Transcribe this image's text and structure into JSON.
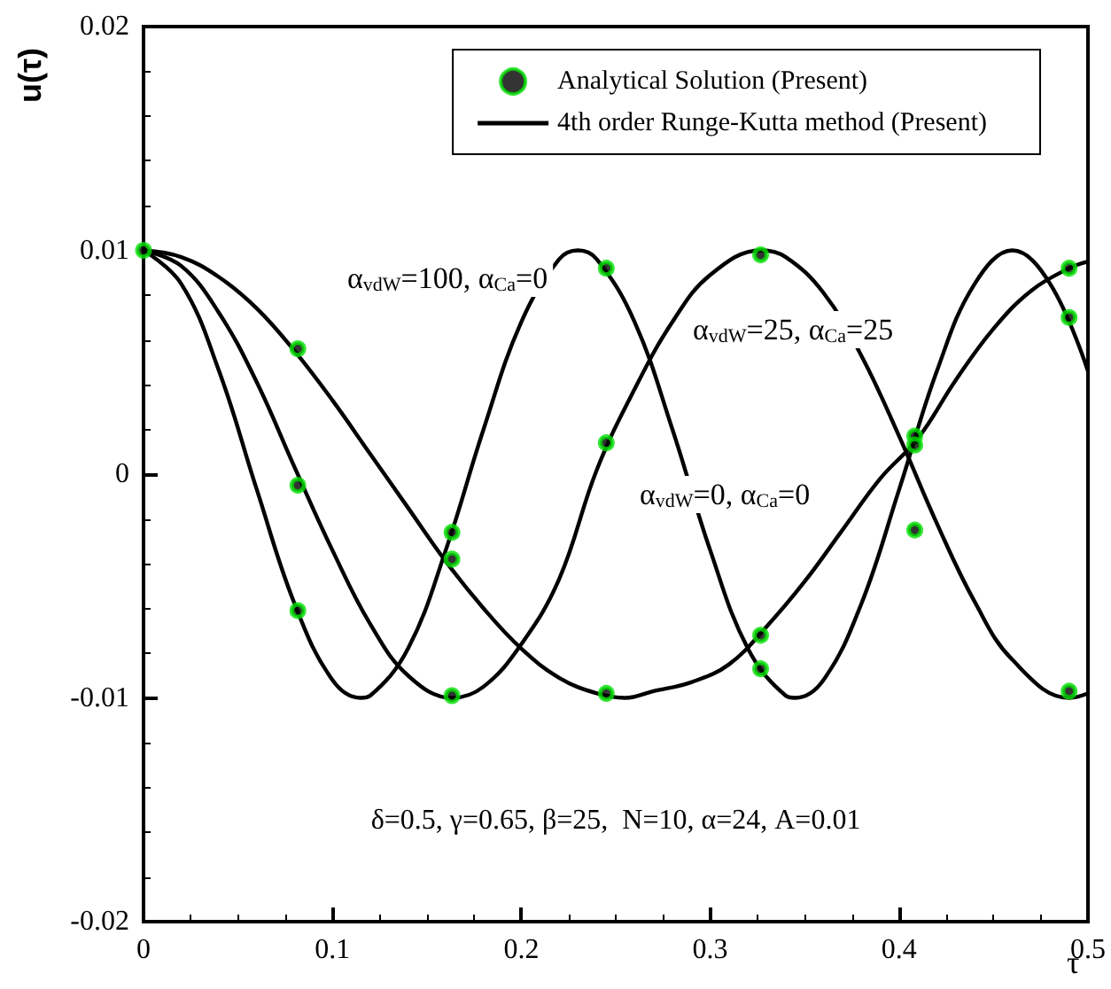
{
  "chart_data": {
    "type": "line",
    "xlabel": "τ",
    "ylabel": "u(τ)",
    "xlim": [
      0,
      0.5
    ],
    "xticks": [
      0,
      0.1,
      0.2,
      0.3,
      0.4,
      0.5
    ],
    "ylim": [
      -0.02,
      0.02
    ],
    "yticks": [
      -0.02,
      -0.01,
      0,
      0.01,
      0.02
    ],
    "grid": false,
    "legend": "top right",
    "annotations": [
      "α$_{vdW}$=100, α$_{Ca}$=0",
      "α$_{vdW}$=25, α$_{Ca}$=25",
      "α$_{vdW}$=0, α$_{Ca}$=0",
      "δ=0.5, γ=0.65, β=25,  N=10, α=24, A=0.01"
    ],
    "series": [
      {
        "name": "Analytical Solution (Present)",
        "type": "scatter",
        "color": "#00e000",
        "marker": "circle",
        "x": [
          0,
          0.0817,
          0.0817,
          0.0817,
          0.1633,
          0.1633,
          0.1633,
          0.245,
          0.245,
          0.245,
          0.3267,
          0.3267,
          0.3267,
          0.4083,
          0.4083,
          0.4083,
          0.49,
          0.49,
          0.49
        ],
        "values": [
          0.01,
          0.0056,
          -0.0005,
          -0.0061,
          -0.0026,
          -0.0038,
          -0.0099,
          0.0092,
          0.0014,
          -0.0098,
          0.0098,
          -0.0072,
          -0.0087,
          0.0017,
          0.0013,
          -0.0025,
          0.0092,
          0.007,
          -0.0097
        ]
      },
      {
        "name": "4th order Runge-Kutta method (Present)",
        "color": "#000000",
        "x": [
          0,
          0.02,
          0.04,
          0.06,
          0.08,
          0.1,
          0.115,
          0.12,
          0.14,
          0.16,
          0.18,
          0.2,
          0.22,
          0.23,
          0.24,
          0.26,
          0.28,
          0.3,
          0.32,
          0.34,
          0.345,
          0.36,
          0.38,
          0.4,
          0.42,
          0.44,
          0.46,
          0.48,
          0.5
        ],
        "values": [
          0.01,
          0.0085,
          0.0046,
          -0.0007,
          -0.0058,
          -0.0092,
          -0.01,
          -0.0099,
          -0.0078,
          -0.0034,
          0.002,
          0.0068,
          0.0096,
          0.01,
          0.0096,
          0.0068,
          0.002,
          -0.0034,
          -0.0078,
          -0.0099,
          -0.01,
          -0.0092,
          -0.0058,
          -0.0007,
          0.0046,
          0.0085,
          0.01,
          0.0085,
          0.0046
        ]
      },
      {
        "color": "#000000",
        "x": [
          0,
          0.02,
          0.04,
          0.06,
          0.08,
          0.1,
          0.12,
          0.14,
          0.1635,
          0.18,
          0.2,
          0.22,
          0.24,
          0.26,
          0.28,
          0.3,
          0.327,
          0.34,
          0.36,
          0.38,
          0.4,
          0.42,
          0.44,
          0.46,
          0.49,
          0.5
        ],
        "values": [
          0.01,
          0.0093,
          0.0072,
          0.0041,
          0.0003,
          -0.0034,
          -0.0067,
          -0.009,
          -0.01,
          -0.0095,
          -0.0076,
          -0.0047,
          0.0002,
          0.0038,
          0.0068,
          0.0089,
          0.01,
          0.0097,
          0.0081,
          0.0053,
          0.0017,
          -0.0022,
          -0.0057,
          -0.0083,
          -0.01,
          -0.0098
        ]
      },
      {
        "color": "#000000",
        "x": [
          0,
          0.02,
          0.04,
          0.06,
          0.08,
          0.1,
          0.12,
          0.14,
          0.16,
          0.18,
          0.2,
          0.22,
          0.24,
          0.255,
          0.27,
          0.29,
          0.31,
          0.33,
          0.35,
          0.37,
          0.39,
          0.41,
          0.43,
          0.45,
          0.47,
          0.49,
          0.5
        ],
        "values": [
          0.01,
          0.0097,
          0.0088,
          0.0074,
          0.0055,
          0.0033,
          0.0009,
          -0.0015,
          -0.0039,
          -0.006,
          -0.0078,
          -0.0091,
          -0.0098,
          -0.01,
          -0.0097,
          -0.0093,
          -0.0085,
          -0.0068,
          -0.0048,
          -0.0025,
          -0.0002,
          0.0016,
          0.0042,
          0.0065,
          0.0082,
          0.0092,
          0.0095
        ]
      }
    ]
  }
}
